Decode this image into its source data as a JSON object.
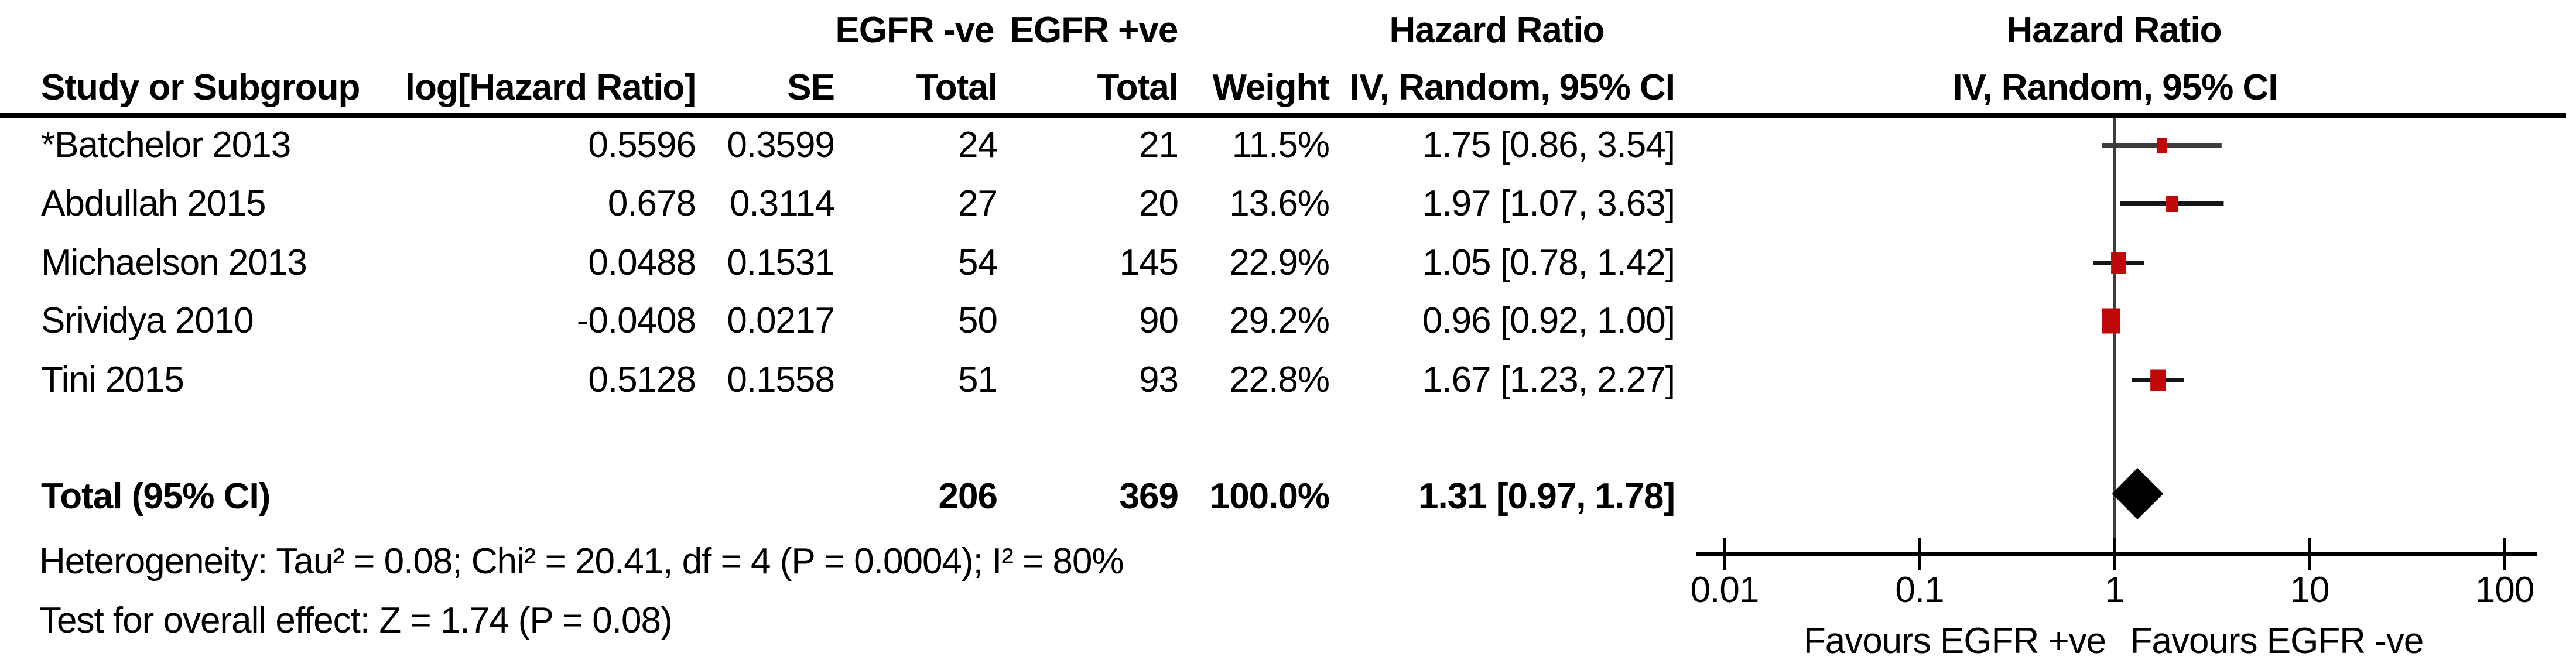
{
  "table": {
    "group_headers": {
      "egfr_neg": "EGFR -ve",
      "egfr_pos": "EGFR +ve",
      "hazard_ratio_table": "Hazard Ratio",
      "hazard_ratio_plot": "Hazard Ratio"
    },
    "sub_headers": {
      "study": "Study or Subgroup",
      "log_hr": "log[Hazard Ratio]",
      "se": "SE",
      "total_neg": "Total",
      "total_pos": "Total",
      "weight": "Weight",
      "ci_table": "IV, Random, 95% CI",
      "ci_plot": "IV, Random, 95% CI"
    },
    "rows": [
      {
        "study": "*Batchelor 2013",
        "log_hr": "0.5596",
        "se": "0.3599",
        "total_neg": "24",
        "total_pos": "21",
        "weight": "11.5%",
        "ci_text": "1.75 [0.86, 3.54]"
      },
      {
        "study": "Abdullah 2015",
        "log_hr": "0.678",
        "se": "0.3114",
        "total_neg": "27",
        "total_pos": "20",
        "weight": "13.6%",
        "ci_text": "1.97 [1.07, 3.63]"
      },
      {
        "study": "Michaelson 2013",
        "log_hr": "0.0488",
        "se": "0.1531",
        "total_neg": "54",
        "total_pos": "145",
        "weight": "22.9%",
        "ci_text": "1.05 [0.78, 1.42]"
      },
      {
        "study": "Srividya 2010",
        "log_hr": "-0.0408",
        "se": "0.0217",
        "total_neg": "50",
        "total_pos": "90",
        "weight": "29.2%",
        "ci_text": "0.96 [0.92, 1.00]"
      },
      {
        "study": "Tini 2015",
        "log_hr": "0.5128",
        "se": "0.1558",
        "total_neg": "51",
        "total_pos": "93",
        "weight": "22.8%",
        "ci_text": "1.67 [1.23, 2.27]"
      }
    ],
    "total_row": {
      "label": "Total (95% CI)",
      "total_neg": "206",
      "total_pos": "369",
      "weight": "100.0%",
      "ci_text": "1.31 [0.97, 1.78]"
    }
  },
  "footer": {
    "heterogeneity": "Heterogeneity: Tau² = 0.08; Chi² = 20.41, df = 4 (P = 0.0004); I² = 80%",
    "overall_effect": "Test for overall effect: Z = 1.74 (P = 0.08)"
  },
  "axis": {
    "tick_labels": [
      "0.01",
      "0.1",
      "1",
      "10",
      "100"
    ],
    "favours_left": "Favours EGFR +ve",
    "favours_right": "Favours EGFR -ve"
  },
  "colors": {
    "marker_red": "#c00808",
    "ci_line": "#141414",
    "ci_line_first_row": "#3d3d3d",
    "no_effect_line": "#3d3d3d",
    "axis_black": "#000000",
    "diamond": "#000000"
  },
  "chart_data": {
    "type": "scatter",
    "subtype": "forest-plot",
    "title": "Hazard Ratio, IV, Random, 95% CI",
    "x_scale": "log10",
    "x_ticks": [
      0.01,
      0.1,
      1,
      10,
      100
    ],
    "xlim": [
      0.01,
      100
    ],
    "no_effect_value": 1,
    "series": [
      {
        "name": "*Batchelor 2013",
        "hr": 1.75,
        "ci": [
          0.86,
          3.54
        ],
        "weight_pct": 11.5
      },
      {
        "name": "Abdullah 2015",
        "hr": 1.97,
        "ci": [
          1.07,
          3.63
        ],
        "weight_pct": 13.6
      },
      {
        "name": "Michaelson 2013",
        "hr": 1.05,
        "ci": [
          0.78,
          1.42
        ],
        "weight_pct": 22.9
      },
      {
        "name": "Srividya 2010",
        "hr": 0.96,
        "ci": [
          0.92,
          1.0
        ],
        "weight_pct": 29.2
      },
      {
        "name": "Tini 2015",
        "hr": 1.67,
        "ci": [
          1.23,
          2.27
        ],
        "weight_pct": 22.8
      }
    ],
    "total": {
      "name": "Total (95% CI)",
      "hr": 1.31,
      "ci": [
        0.97,
        1.78
      ],
      "weight_pct": 100.0
    }
  }
}
